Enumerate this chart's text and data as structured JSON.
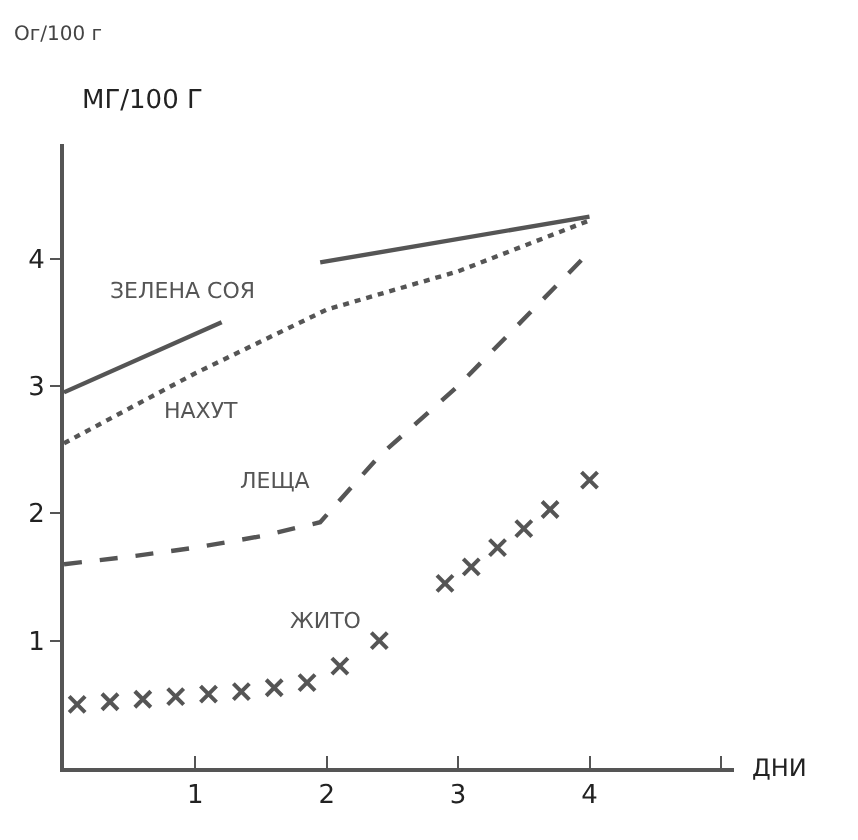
{
  "chart_data": {
    "type": "line",
    "xlabel": "ДНИ",
    "ylabel": "МГ/100 Г",
    "annotations": [
      "Ог/100 г"
    ],
    "xlim": [
      0,
      5.1
    ],
    "ylim": [
      0,
      4.9
    ],
    "xticks": [
      1,
      2,
      3,
      4,
      {
        "value": 5,
        "label": null
      }
    ],
    "yticks": [
      1,
      2,
      3,
      4
    ],
    "grid": false,
    "legend": false,
    "series": [
      {
        "name": "ЗЕЛЕНА СОЯ",
        "color": "#555555",
        "line_style": "solid",
        "marker": "none",
        "x": [
          0,
          1.2,
          1.6,
          1.95,
          4
        ],
        "values": [
          2.95,
          3.5,
          null,
          3.97,
          4.33
        ]
      },
      {
        "name": "НАХУТ",
        "color": "#555555",
        "line_style": "dotted",
        "marker": "none",
        "x": [
          0,
          1,
          2,
          3,
          4
        ],
        "values": [
          2.55,
          3.1,
          3.6,
          3.9,
          4.3
        ]
      },
      {
        "name": "ЛЕЩА",
        "color": "#555555",
        "line_style": "dashed",
        "marker": "none",
        "x": [
          0,
          0.5,
          1,
          1.5,
          1.95,
          2.4,
          3,
          3.95
        ],
        "values": [
          1.6,
          1.66,
          1.73,
          1.82,
          1.93,
          2.45,
          3.0,
          4.0
        ]
      },
      {
        "name": "ЖИТО",
        "type": "scatter",
        "color": "#555555",
        "marker": "cross",
        "x": [
          0.1,
          0.35,
          0.6,
          0.85,
          1.1,
          1.35,
          1.6,
          1.85,
          2.1,
          2.4,
          2.9,
          3.1,
          3.3,
          3.5,
          3.7,
          4.0
        ],
        "values": [
          0.5,
          0.52,
          0.54,
          0.56,
          0.58,
          0.6,
          0.63,
          0.67,
          0.8,
          1.0,
          1.45,
          1.58,
          1.73,
          1.88,
          2.03,
          2.26
        ]
      }
    ]
  }
}
